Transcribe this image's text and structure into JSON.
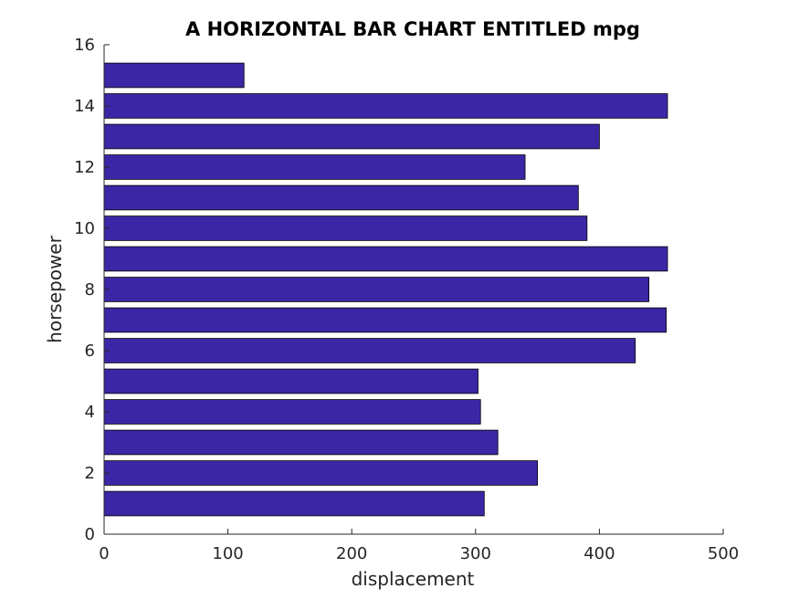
{
  "chart_data": {
    "type": "bar",
    "orientation": "horizontal",
    "title": "A HORIZONTAL BAR CHART ENTITLED mpg",
    "xlabel": "displacement",
    "ylabel": "horsepower",
    "xlim": [
      0,
      500
    ],
    "ylim": [
      0,
      16
    ],
    "xticks": [
      0,
      100,
      200,
      300,
      400,
      500
    ],
    "yticks": [
      0,
      2,
      4,
      6,
      8,
      10,
      12,
      14,
      16
    ],
    "categories": [
      1,
      2,
      3,
      4,
      5,
      6,
      7,
      8,
      9,
      10,
      11,
      12,
      13,
      14,
      15
    ],
    "values": [
      307,
      350,
      318,
      304,
      302,
      429,
      454,
      440,
      455,
      390,
      383,
      340,
      400,
      455,
      113
    ],
    "bar_color": "#3b27a5",
    "grid": false,
    "legend": "none"
  }
}
